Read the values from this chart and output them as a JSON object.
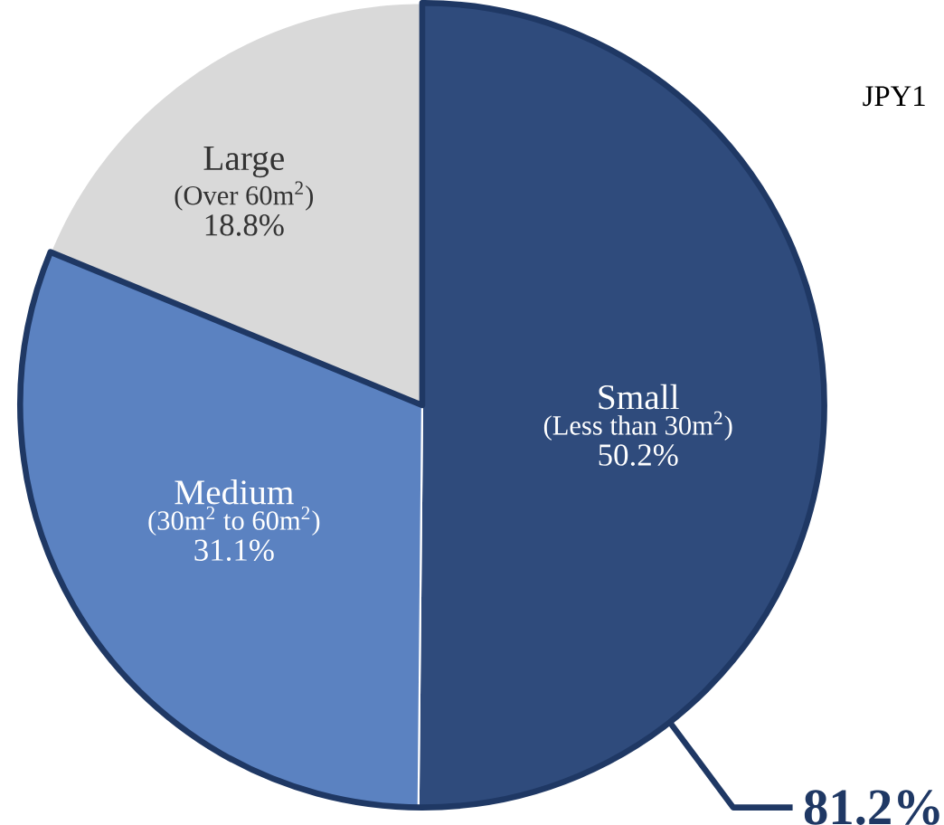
{
  "chart_data": {
    "type": "pie",
    "categories": [
      "Small",
      "Medium",
      "Large"
    ],
    "values": [
      50.2,
      31.1,
      18.8
    ],
    "colors": [
      "#2f4b7c",
      "#5b82c1",
      "#d9d9d9"
    ],
    "value_labels": [
      "50.2%",
      "31.1%",
      "18.8%"
    ],
    "annotations": [
      "(Less than 30m$^{2}$)",
      "(30m$^{2}$ to 60m$^{2}$)",
      "(Over 60m$^{2}$)",
      "81.2%",
      "JPY1"
    ]
  }
}
